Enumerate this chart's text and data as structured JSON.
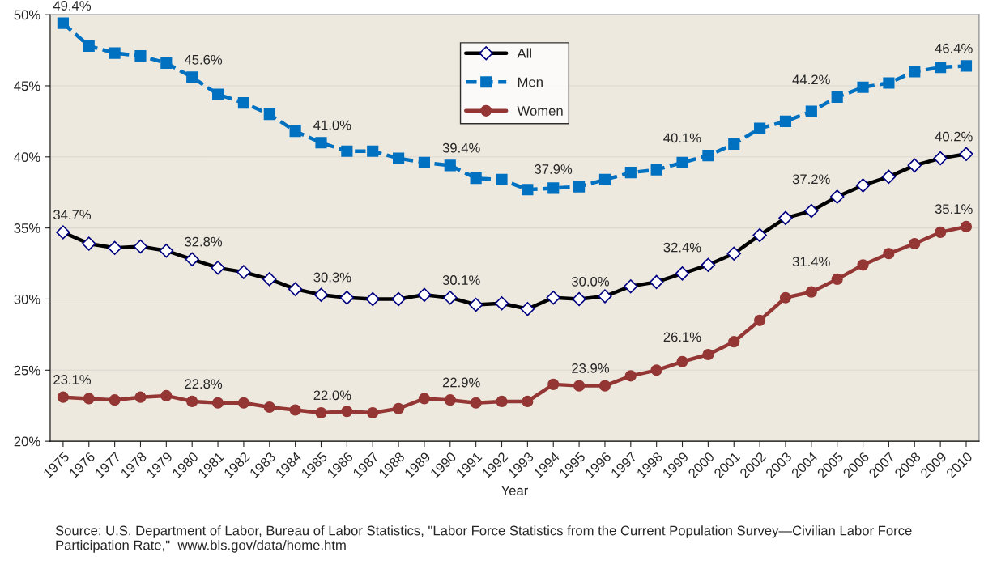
{
  "chart_data": {
    "type": "line",
    "xlabel": "Year",
    "categories": [
      "1975",
      "1976",
      "1977",
      "1978",
      "1979",
      "1980",
      "1981",
      "1982",
      "1983",
      "1984",
      "1985",
      "1986",
      "1987",
      "1988",
      "1989",
      "1990",
      "1991",
      "1992",
      "1993",
      "1994",
      "1995",
      "1996",
      "1997",
      "1998",
      "1999",
      "2000",
      "2001",
      "2002",
      "2003",
      "2004",
      "2005",
      "2006",
      "2007",
      "2008",
      "2009",
      "2010"
    ],
    "series": [
      {
        "name": "All",
        "color": "#000000",
        "marker": "diamond",
        "line_style": "solid",
        "values": [
          34.7,
          33.9,
          33.6,
          33.7,
          33.4,
          32.8,
          32.2,
          31.9,
          31.4,
          30.7,
          30.3,
          30.1,
          30.0,
          30.0,
          30.3,
          30.1,
          29.6,
          29.7,
          29.3,
          30.1,
          30.0,
          30.2,
          30.9,
          31.2,
          31.8,
          32.4,
          33.2,
          34.5,
          35.7,
          36.2,
          37.2,
          38.0,
          38.6,
          39.4,
          39.9,
          40.2
        ],
        "value_labels": [
          "34.7%",
          null,
          null,
          null,
          null,
          "32.8%",
          null,
          null,
          null,
          null,
          "30.3%",
          null,
          null,
          null,
          null,
          "30.1%",
          null,
          null,
          null,
          null,
          "30.0%",
          null,
          null,
          null,
          null,
          "32.4%",
          null,
          null,
          null,
          null,
          "37.2%",
          null,
          null,
          null,
          null,
          "40.2%"
        ]
      },
      {
        "name": "Men",
        "color": "#0070c0",
        "marker": "square",
        "line_style": "dashed",
        "values": [
          49.4,
          47.8,
          47.3,
          47.1,
          46.6,
          45.6,
          44.4,
          43.8,
          43.0,
          41.8,
          41.0,
          40.4,
          40.4,
          39.9,
          39.6,
          39.4,
          38.5,
          38.4,
          37.7,
          37.8,
          37.9,
          38.4,
          38.9,
          39.1,
          39.6,
          40.1,
          40.9,
          42.0,
          42.5,
          43.2,
          44.2,
          44.9,
          45.2,
          46.0,
          46.3,
          46.4
        ],
        "value_labels": [
          "49.4%",
          null,
          null,
          null,
          null,
          "45.6%",
          null,
          null,
          null,
          null,
          "41.0%",
          null,
          null,
          null,
          null,
          "39.4%",
          null,
          null,
          null,
          null,
          "37.9%",
          null,
          null,
          null,
          null,
          "40.1%",
          null,
          null,
          null,
          null,
          "44.2%",
          null,
          null,
          null,
          null,
          "46.4%"
        ]
      },
      {
        "name": "Women",
        "color": "#943634",
        "marker": "circle",
        "line_style": "solid",
        "values": [
          23.1,
          23.0,
          22.9,
          23.1,
          23.2,
          22.8,
          22.7,
          22.7,
          22.4,
          22.2,
          22.0,
          22.1,
          22.0,
          22.3,
          23.0,
          22.9,
          22.7,
          22.8,
          22.8,
          24.0,
          23.9,
          23.9,
          24.6,
          25.0,
          25.6,
          26.1,
          27.0,
          28.5,
          30.1,
          30.5,
          31.4,
          32.4,
          33.2,
          33.9,
          34.7,
          35.1
        ],
        "value_labels": [
          "23.1%",
          null,
          null,
          null,
          null,
          "22.8%",
          null,
          null,
          null,
          null,
          "22.0%",
          null,
          null,
          null,
          null,
          "22.9%",
          null,
          null,
          null,
          null,
          "23.9%",
          null,
          null,
          null,
          null,
          "26.1%",
          null,
          null,
          null,
          null,
          "31.4%",
          null,
          null,
          null,
          null,
          "35.1%"
        ]
      }
    ],
    "ylim": [
      20,
      50
    ],
    "yticks": [
      {
        "value": 20,
        "label": "20%"
      },
      {
        "value": 25,
        "label": "25%"
      },
      {
        "value": 30,
        "label": "30%"
      },
      {
        "value": 35,
        "label": "35%"
      },
      {
        "value": 40,
        "label": "40%"
      },
      {
        "value": 45,
        "label": "45%"
      },
      {
        "value": 50,
        "label": "50%"
      }
    ],
    "grid": "y",
    "legend": "top",
    "annotations": [
      "Source: U.S. Department of Labor, Bureau of Labor Statistics, \"Labor Force Statistics from the Current Population Survey—Civilian Labor Force Participation Rate,\"  www.bls.gov/data/home.htm"
    ]
  }
}
